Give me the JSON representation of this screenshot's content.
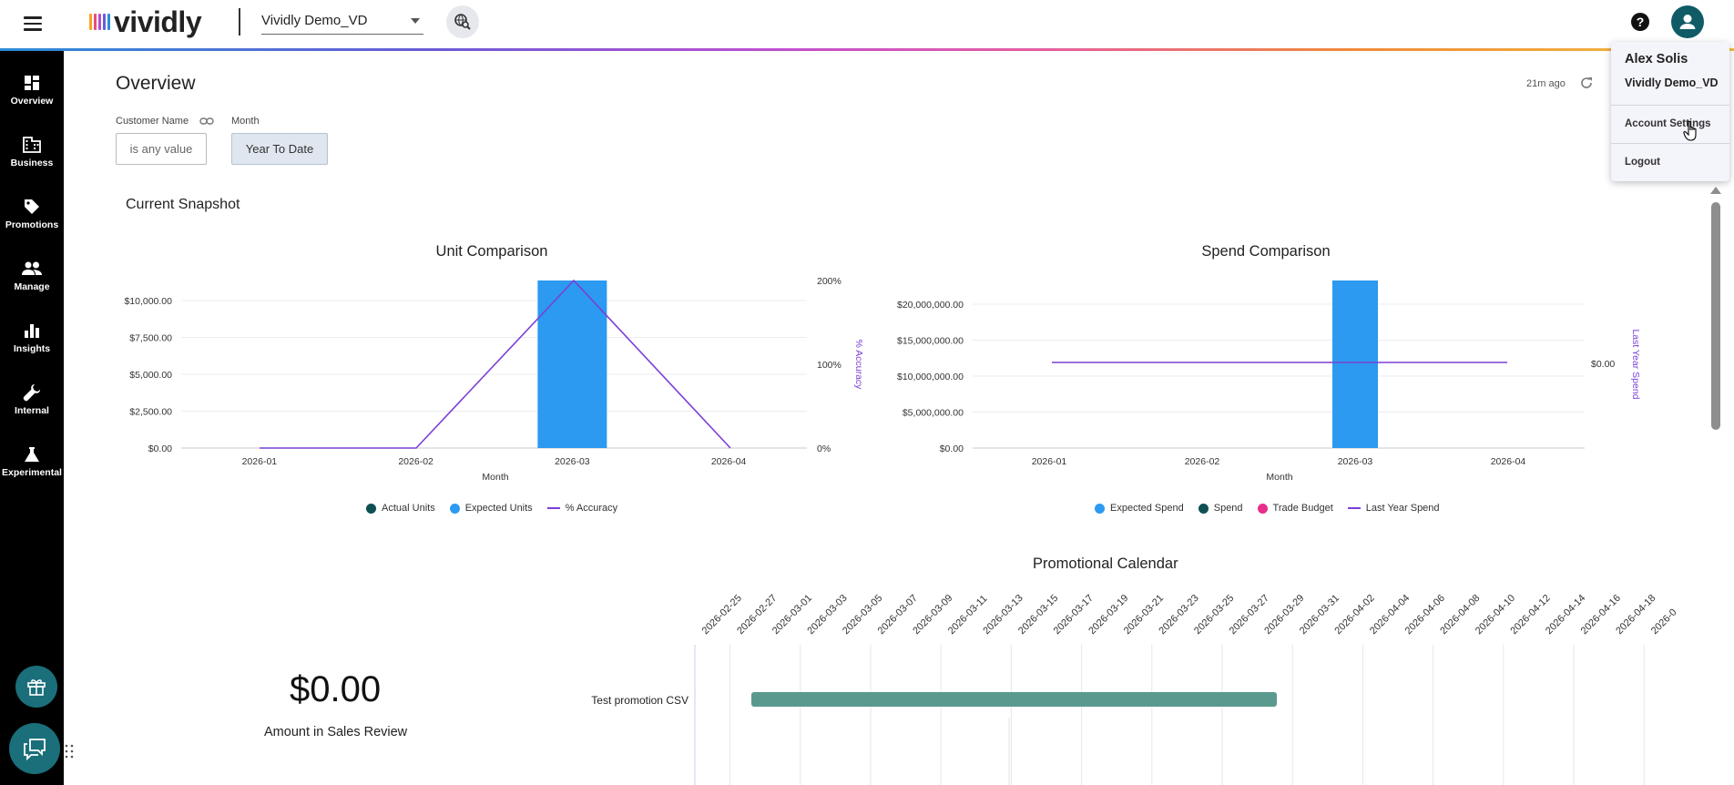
{
  "topbar": {
    "logo_text": "vividly",
    "logo_colors": [
      "#f6a623",
      "#e94e77",
      "#b04fd6",
      "#6a5bd6",
      "#2b8cd6"
    ],
    "account_selector": "Vividly Demo_VD",
    "help_icon": "?"
  },
  "sidebar": {
    "items": [
      {
        "label": "Overview",
        "icon": "dashboard-icon"
      },
      {
        "label": "Business",
        "icon": "building-icon"
      },
      {
        "label": "Promotions",
        "icon": "tag-icon"
      },
      {
        "label": "Manage",
        "icon": "people-icon"
      },
      {
        "label": "Insights",
        "icon": "bar-chart-icon"
      },
      {
        "label": "Internal",
        "icon": "wrench-icon"
      },
      {
        "label": "Experimental",
        "icon": "flask-icon"
      }
    ]
  },
  "page": {
    "title": "Overview",
    "updated": "21m ago",
    "filters": {
      "customer_label": "Customer Name",
      "customer_value": "is any value",
      "month_label": "Month",
      "month_value": "Year To Date"
    },
    "section_title": "Current Snapshot"
  },
  "chart_data": [
    {
      "type": "bar",
      "title": "Unit Comparison",
      "xlabel": "Month",
      "ylabel": "",
      "y2label": "% Accuracy",
      "categories": [
        "2026-01",
        "2026-02",
        "2026-03",
        "2026-04"
      ],
      "ylim": [
        0,
        11000
      ],
      "yticks": [
        "$0.00",
        "$2,500.00",
        "$5,000.00",
        "$7,500.00",
        "$10,000.00"
      ],
      "y2ticks": [
        "0%",
        "100%",
        "200%"
      ],
      "series": [
        {
          "name": "Actual Units",
          "kind": "bar",
          "values": [
            0,
            0,
            0,
            0
          ],
          "color": "#0e4f52"
        },
        {
          "name": "Expected Units",
          "kind": "bar",
          "values": [
            0,
            0,
            11300,
            0
          ],
          "color": "#2b9af0"
        },
        {
          "name": "% Accuracy",
          "kind": "line",
          "axis": "right",
          "values": [
            0,
            0,
            200,
            0
          ],
          "color": "#7b3fd6"
        }
      ]
    },
    {
      "type": "bar",
      "title": "Spend Comparison",
      "xlabel": "Month",
      "ylabel": "",
      "y2label": "Last Year Spend",
      "categories": [
        "2026-01",
        "2026-02",
        "2026-03",
        "2026-04"
      ],
      "ylim": [
        0,
        23000000
      ],
      "yticks": [
        "$0.00",
        "$5,000,000.00",
        "$10,000,000.00",
        "$15,000,000.00",
        "$20,000,000.00"
      ],
      "y2ticks": [
        "$0.00"
      ],
      "series": [
        {
          "name": "Expected Spend",
          "kind": "bar",
          "values": [
            0,
            0,
            23000000,
            0
          ],
          "color": "#2b9af0"
        },
        {
          "name": "Spend",
          "kind": "bar",
          "values": [
            0,
            0,
            0,
            0
          ],
          "color": "#0e4f52"
        },
        {
          "name": "Trade Budget",
          "kind": "bar",
          "values": [
            0,
            0,
            0,
            0
          ],
          "color": "#e62e8a"
        },
        {
          "name": "Last Year Spend",
          "kind": "line",
          "axis": "right",
          "values": [
            0,
            0,
            0,
            0
          ],
          "color": "#7b3fd6"
        }
      ]
    }
  ],
  "calendar": {
    "title": "Promotional Calendar",
    "dates": [
      "2026-02-25",
      "2026-02-27",
      "2026-03-01",
      "2026-03-03",
      "2026-03-05",
      "2026-03-07",
      "2026-03-09",
      "2026-03-11",
      "2026-03-13",
      "2026-03-15",
      "2026-03-17",
      "2026-03-19",
      "2026-03-21",
      "2026-03-23",
      "2026-03-25",
      "2026-03-27",
      "2026-03-29",
      "2026-03-31",
      "2026-04-02",
      "2026-04-04",
      "2026-04-06",
      "2026-04-08",
      "2026-04-10",
      "2026-04-12",
      "2026-04-14",
      "2026-04-16",
      "2026-04-18",
      "2026-0"
    ],
    "rows": [
      {
        "label": "Test promotion CSV",
        "start": "2026-02-28",
        "end": "2026-03-29",
        "color": "#5a9a8e"
      }
    ]
  },
  "kpi": {
    "value": "$0.00",
    "label": "Amount in Sales Review"
  },
  "user_menu": {
    "name": "Alex Solis",
    "org": "Vividly Demo_VD",
    "items": [
      "Account Settings",
      "Logout"
    ]
  }
}
